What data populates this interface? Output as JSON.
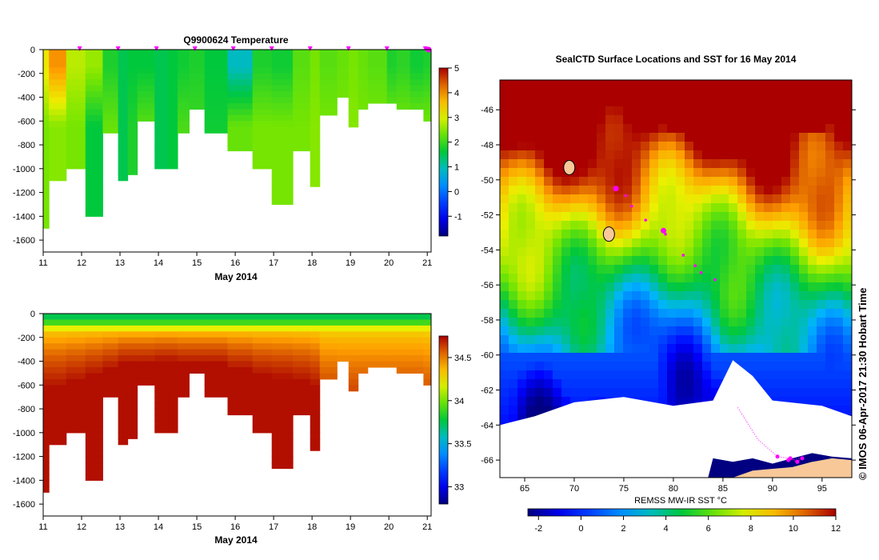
{
  "chart_data": [
    {
      "type": "heatmap",
      "title": "Q9900624  Temperature",
      "xlabel": "May 2014",
      "ylabel": "",
      "xlim": [
        11,
        21.1
      ],
      "ylim": [
        -1700,
        0
      ],
      "xticks": [
        "11",
        "12",
        "13",
        "14",
        "15",
        "16",
        "17",
        "18",
        "19",
        "20",
        "21"
      ],
      "yticks": [
        "0",
        "-200",
        "-400",
        "-600",
        "-800",
        "-1000",
        "-1200",
        "-1400",
        "-1600"
      ],
      "colorbar": {
        "min": -1.8,
        "max": 5,
        "ticks": [
          "-1",
          "0",
          "1",
          "2",
          "3",
          "4",
          "5"
        ]
      },
      "profile_markers_days": [
        11.95,
        12.95,
        13.95,
        14.95,
        15.95,
        16.95,
        17.95,
        18.95,
        19.95,
        20.95
      ],
      "profiles": [
        {
          "t": 11.0,
          "depth": 1500,
          "surf": 3.2,
          "deep": 2.4
        },
        {
          "t": 11.15,
          "depth": 1070,
          "surf": 4.0,
          "deep": 2.5
        },
        {
          "t": 11.6,
          "depth": 1000,
          "surf": 2.8,
          "deep": 2.4
        },
        {
          "t": 12.1,
          "depth": 1400,
          "surf": 2.6,
          "deep": 1.6
        },
        {
          "t": 12.55,
          "depth": 700,
          "surf": 1.8,
          "deep": 2.3
        },
        {
          "t": 12.95,
          "depth": 1100,
          "surf": 1.5,
          "deep": 1.5
        },
        {
          "t": 13.2,
          "depth": 1050,
          "surf": 1.6,
          "deep": 1.8
        },
        {
          "t": 13.45,
          "depth": 600,
          "surf": 1.6,
          "deep": 2.2
        },
        {
          "t": 13.9,
          "depth": 1000,
          "surf": 1.5,
          "deep": 1.5
        },
        {
          "t": 14.25,
          "depth": 1000,
          "surf": 1.6,
          "deep": 1.6
        },
        {
          "t": 14.5,
          "depth": 700,
          "surf": 1.7,
          "deep": 2.1
        },
        {
          "t": 14.8,
          "depth": 500,
          "surf": 1.8,
          "deep": 2.0
        },
        {
          "t": 15.2,
          "depth": 700,
          "surf": 1.6,
          "deep": 1.7
        },
        {
          "t": 15.8,
          "depth": 850,
          "surf": 0.9,
          "deep": 2.3
        },
        {
          "t": 16.45,
          "depth": 1000,
          "surf": 1.8,
          "deep": 2.4
        },
        {
          "t": 16.95,
          "depth": 1300,
          "surf": 1.7,
          "deep": 2.4
        },
        {
          "t": 17.5,
          "depth": 850,
          "surf": 2.2,
          "deep": 2.4
        },
        {
          "t": 17.95,
          "depth": 1120,
          "surf": 2.4,
          "deep": 2.5
        },
        {
          "t": 18.2,
          "depth": 550,
          "surf": 2.2,
          "deep": 2.4
        },
        {
          "t": 18.65,
          "depth": 400,
          "surf": 2.3,
          "deep": 2.4
        },
        {
          "t": 18.95,
          "depth": 650,
          "surf": 2.4,
          "deep": 2.5
        },
        {
          "t": 19.2,
          "depth": 500,
          "surf": 2.3,
          "deep": 2.4
        },
        {
          "t": 19.45,
          "depth": 450,
          "surf": 2.2,
          "deep": 2.4
        },
        {
          "t": 19.95,
          "depth": 450,
          "surf": 1.8,
          "deep": 2.4
        },
        {
          "t": 20.2,
          "depth": 500,
          "surf": 1.9,
          "deep": 2.4
        },
        {
          "t": 20.55,
          "depth": 500,
          "surf": 1.7,
          "deep": 2.4
        },
        {
          "t": 20.9,
          "depth": 580,
          "surf": 1.8,
          "deep": 2.4
        }
      ]
    },
    {
      "type": "heatmap",
      "title": "",
      "xlabel": "May 2014",
      "ylabel": "",
      "xlim": [
        11,
        21.1
      ],
      "ylim": [
        -1700,
        0
      ],
      "xticks": [
        "11",
        "12",
        "13",
        "14",
        "15",
        "16",
        "17",
        "18",
        "19",
        "20",
        "21"
      ],
      "yticks": [
        "0",
        "-200",
        "-400",
        "-600",
        "-800",
        "-1000",
        "-1200",
        "-1400",
        "-1600"
      ],
      "colorbar": {
        "min": 32.8,
        "max": 34.75,
        "ticks": [
          "33",
          "33.5",
          "34",
          "34.5"
        ]
      },
      "profiles": [
        {
          "t": 11.0,
          "depth": 1500,
          "deep": 34.72,
          "halo": 500
        },
        {
          "t": 11.15,
          "depth": 1070,
          "deep": 34.72,
          "halo": 500
        },
        {
          "t": 11.6,
          "depth": 1000,
          "deep": 34.72,
          "halo": 450
        },
        {
          "t": 12.1,
          "depth": 1400,
          "deep": 34.72,
          "halo": 400
        },
        {
          "t": 12.55,
          "depth": 700,
          "deep": 34.72,
          "halo": 350
        },
        {
          "t": 12.95,
          "depth": 1100,
          "deep": 34.72,
          "halo": 300
        },
        {
          "t": 13.2,
          "depth": 1050,
          "deep": 34.72,
          "halo": 300
        },
        {
          "t": 13.45,
          "depth": 600,
          "deep": 34.72,
          "halo": 300
        },
        {
          "t": 13.9,
          "depth": 1000,
          "deep": 34.72,
          "halo": 280
        },
        {
          "t": 14.25,
          "depth": 1000,
          "deep": 34.72,
          "halo": 280
        },
        {
          "t": 14.5,
          "depth": 700,
          "deep": 34.72,
          "halo": 300
        },
        {
          "t": 14.8,
          "depth": 500,
          "deep": 34.72,
          "halo": 300
        },
        {
          "t": 15.2,
          "depth": 700,
          "deep": 34.72,
          "halo": 300
        },
        {
          "t": 15.8,
          "depth": 850,
          "deep": 34.72,
          "halo": 350
        },
        {
          "t": 16.45,
          "depth": 1000,
          "deep": 34.72,
          "halo": 400
        },
        {
          "t": 16.95,
          "depth": 1300,
          "deep": 34.72,
          "halo": 420
        },
        {
          "t": 17.5,
          "depth": 850,
          "deep": 34.72,
          "halo": 450
        },
        {
          "t": 17.95,
          "depth": 1120,
          "deep": 34.72,
          "halo": 500
        },
        {
          "t": 18.2,
          "depth": 550,
          "deep": 34.62,
          "halo": 520
        },
        {
          "t": 18.65,
          "depth": 400,
          "deep": 34.6,
          "halo": 500
        },
        {
          "t": 18.95,
          "depth": 650,
          "deep": 34.62,
          "halo": 550
        },
        {
          "t": 19.2,
          "depth": 500,
          "deep": 34.62,
          "halo": 550
        },
        {
          "t": 19.45,
          "depth": 450,
          "deep": 34.6,
          "halo": 500
        },
        {
          "t": 19.95,
          "depth": 450,
          "deep": 34.6,
          "halo": 500
        },
        {
          "t": 20.2,
          "depth": 500,
          "deep": 34.6,
          "halo": 500
        },
        {
          "t": 20.55,
          "depth": 500,
          "deep": 34.6,
          "halo": 500
        },
        {
          "t": 20.9,
          "depth": 580,
          "deep": 34.6,
          "halo": 550
        }
      ]
    },
    {
      "type": "heatmap",
      "title": "SealCTD Surface Locations and SST for 16 May 2014",
      "xlabel": "REMSS MW-IR SST °C",
      "ylabel": "",
      "xlim": [
        62.5,
        98
      ],
      "ylim": [
        -67,
        -44.3
      ],
      "xticks": [
        "65",
        "70",
        "75",
        "80",
        "85",
        "90",
        "95"
      ],
      "yticks": [
        "-46",
        "-48",
        "-50",
        "-52",
        "-54",
        "-56",
        "-58",
        "-60",
        "-62",
        "-64",
        "-66"
      ],
      "colorbar": {
        "min": -2.5,
        "max": 12,
        "ticks": [
          "-2",
          "0",
          "2",
          "4",
          "6",
          "8",
          "10",
          "12"
        ]
      },
      "track": [
        {
          "lon": 74.2,
          "lat": -50.5,
          "big": true
        },
        {
          "lon": 75.2,
          "lat": -50.9,
          "big": false
        },
        {
          "lon": 75.8,
          "lat": -51.5,
          "big": false
        },
        {
          "lon": 77.2,
          "lat": -52.3,
          "big": false
        },
        {
          "lon": 79.0,
          "lat": -52.9,
          "big": true
        },
        {
          "lon": 79.2,
          "lat": -53.1,
          "big": false
        },
        {
          "lon": 81.0,
          "lat": -54.3,
          "big": false
        },
        {
          "lon": 82.2,
          "lat": -54.9,
          "big": false
        },
        {
          "lon": 82.8,
          "lat": -55.3,
          "big": false
        },
        {
          "lon": 84.2,
          "lat": -55.7,
          "big": false
        }
      ],
      "ice_track": [
        {
          "lon": 86.5,
          "lat": -63.0
        },
        {
          "lon": 88.5,
          "lat": -64.8
        },
        {
          "lon": 90.5,
          "lat": -65.8
        },
        {
          "lon": 91.8,
          "lat": -65.9
        },
        {
          "lon": 92.5,
          "lat": -66.1
        },
        {
          "lon": 93.0,
          "lat": -65.9
        },
        {
          "lon": 91.6,
          "lat": -66.0
        }
      ],
      "islands": [
        {
          "lon": 69.5,
          "lat": -49.3
        },
        {
          "lon": 73.5,
          "lat": -53.1
        }
      ]
    }
  ],
  "credit": "© IMOS 06-Apr-2017 21:30 Hobart Time",
  "colors": {
    "marker": "#ff00ff",
    "land": "#f8c898",
    "ice": "#ffffff",
    "coast": "#000080"
  }
}
